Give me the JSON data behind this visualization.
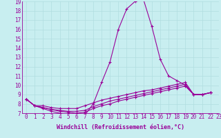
{
  "title": "",
  "xlabel": "Windchill (Refroidissement éolien,°C)",
  "bg_color": "#c8eef0",
  "line_color": "#990099",
  "grid_color": "#b0dde0",
  "xmin": -0.5,
  "xmax": 22.5,
  "ymin": 7,
  "ymax": 19,
  "yticks": [
    7,
    8,
    9,
    10,
    11,
    12,
    13,
    14,
    15,
    16,
    17,
    18,
    19
  ],
  "xticks": [
    0,
    1,
    2,
    3,
    4,
    5,
    6,
    7,
    8,
    9,
    10,
    11,
    12,
    13,
    14,
    15,
    16,
    17,
    18,
    19,
    20,
    21,
    22,
    23
  ],
  "series": [
    [
      8.5,
      7.8,
      7.5,
      7.2,
      7.0,
      6.9,
      6.9,
      6.8,
      8.0,
      10.3,
      12.5,
      16.0,
      18.2,
      19.0,
      19.2,
      16.3,
      12.8,
      11.0,
      10.5,
      10.0,
      9.0,
      9.0,
      9.2
    ],
    [
      8.5,
      7.8,
      7.8,
      7.6,
      7.5,
      7.5,
      7.5,
      7.8,
      8.1,
      8.4,
      8.6,
      8.8,
      9.0,
      9.2,
      9.4,
      9.5,
      9.7,
      9.9,
      10.1,
      10.3,
      9.0,
      9.0,
      9.2
    ],
    [
      8.5,
      7.8,
      7.6,
      7.4,
      7.3,
      7.2,
      7.2,
      7.3,
      7.7,
      8.0,
      8.3,
      8.5,
      8.7,
      8.9,
      9.1,
      9.3,
      9.5,
      9.7,
      9.9,
      10.1,
      9.0,
      9.0,
      9.2
    ],
    [
      8.5,
      7.8,
      7.6,
      7.4,
      7.2,
      7.1,
      7.0,
      7.1,
      7.5,
      7.8,
      8.0,
      8.3,
      8.5,
      8.7,
      8.9,
      9.1,
      9.3,
      9.5,
      9.7,
      9.9,
      9.0,
      9.0,
      9.2
    ]
  ],
  "font_size_ticks": 5.5,
  "font_size_xlabel": 6.0,
  "linewidth": 0.8,
  "markersize": 2.5
}
